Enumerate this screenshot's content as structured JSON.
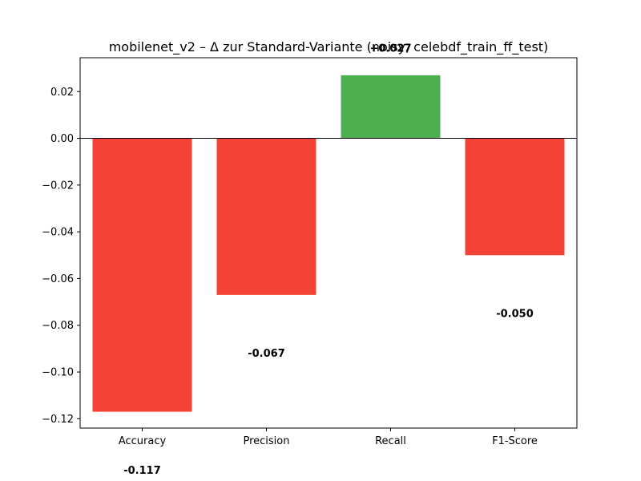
{
  "chart_data": {
    "type": "bar",
    "title": "mobilenet_v2 – Δ zur Standard-Variante (noisy, celebdf_train_ff_test)",
    "xlabel": "",
    "ylabel": "",
    "categories": [
      "Accuracy",
      "Precision",
      "Recall",
      "F1-Score"
    ],
    "values": [
      -0.117,
      -0.067,
      0.027,
      -0.05
    ],
    "data_labels": [
      "-0.117",
      "-0.067",
      "+0.027",
      "-0.050"
    ],
    "ylim": [
      -0.124,
      0.0345
    ],
    "yticks": [
      0.02,
      0.0,
      -0.02,
      -0.04,
      -0.06,
      -0.08,
      -0.1,
      -0.12
    ],
    "ytick_labels": [
      "0.02",
      "0.00",
      "−0.02",
      "−0.04",
      "−0.06",
      "−0.08",
      "−0.10",
      "−0.12"
    ],
    "zero_line": true,
    "grid": false,
    "legend": "none",
    "colors": {
      "positive": "#4caf50",
      "negative": "#f44336",
      "axis": "#000000"
    }
  }
}
